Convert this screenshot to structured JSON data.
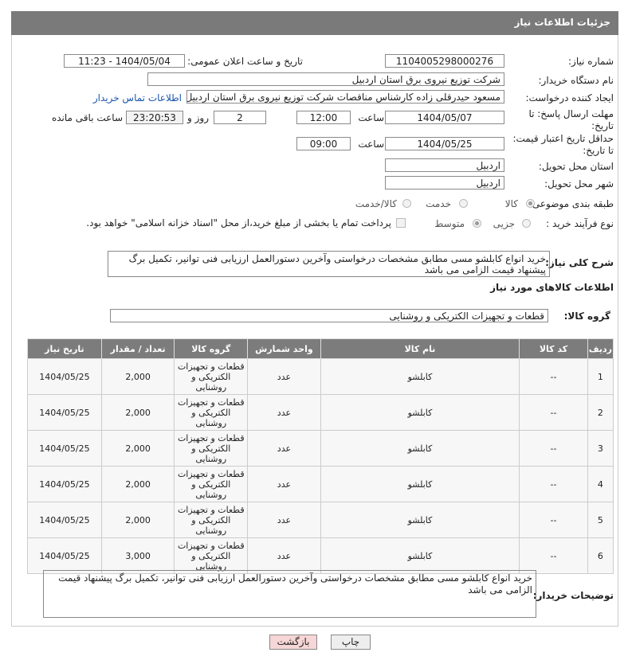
{
  "header": {
    "title": "جزئیات اطلاعات نیاز"
  },
  "fields": {
    "need_number": {
      "label": "شماره نیاز:",
      "value": "1104005298000276"
    },
    "announce_datetime": {
      "label": "تاریخ و ساعت اعلان عمومی:",
      "value": "1404/05/04 - 11:23"
    },
    "buyer_org": {
      "label": "نام دستگاه خریدار:",
      "value": "شرکت توزیع نیروی برق استان اردبیل"
    },
    "requester": {
      "label": "ایجاد کننده درخواست:",
      "value": "مسعود حیدرقلی زاده کارشناس مناقصات شرکت توزیع نیروی برق استان اردبیل",
      "contact_link": "اطلاعات تماس خریدار"
    },
    "response_deadline": {
      "label": "مهلت ارسال پاسخ: تا تاریخ:",
      "date": "1404/05/07",
      "time_label": "ساعت",
      "time": "12:00",
      "days": "2",
      "days_label": "روز و",
      "remaining": "23:20:53",
      "remaining_label": "ساعت باقی مانده"
    },
    "price_validity": {
      "label": "حداقل تاریخ اعتبار قیمت: تا تاریخ:",
      "date": "1404/05/25",
      "time_label": "ساعت",
      "time": "09:00"
    },
    "delivery_province": {
      "label": "استان محل تحویل:",
      "value": "اردبیل"
    },
    "delivery_city": {
      "label": "شهر محل تحویل:",
      "value": "اردبیل"
    },
    "category": {
      "label": "طبقه بندی موضوعی:",
      "options": [
        "کالا",
        "خدمت",
        "کالا/خدمت"
      ]
    },
    "process_type": {
      "label": "نوع فرآیند خرید :",
      "options": [
        "جزیی",
        "متوسط"
      ],
      "treasury_note": "پرداخت تمام یا بخشی از مبلغ خرید،از محل \"اسناد خزانه اسلامی\" خواهد بود."
    },
    "description": {
      "label": "شرح کلی نیاز:",
      "value": "خرید انواع کابلشو مسی مطابق مشخصات درخواستی وآخرین دستورالعمل ارزیابی فنی توانیر، تکمیل برگ پیشنهاد قیمت الزامی می باشد"
    }
  },
  "items": {
    "title": "اطلاعات کالاهای مورد نیاز",
    "group_label": "گروه کالا:",
    "group_value": "قطعات و تجهیزات الکتریکی و روشنایی",
    "table": {
      "columns": [
        "ردیف",
        "کد کالا",
        "نام کالا",
        "واحد شمارش",
        "گروه کالا",
        "تعداد / مقدار",
        "تاریخ نیاز"
      ],
      "rows": [
        [
          "1",
          "--",
          "کابلشو",
          "عدد",
          "قطعات و تجهیزات الکتریکی و روشنایی",
          "2,000",
          "1404/05/25"
        ],
        [
          "2",
          "--",
          "کابلشو",
          "عدد",
          "قطعات و تجهیزات الکتریکی و روشنایی",
          "2,000",
          "1404/05/25"
        ],
        [
          "3",
          "--",
          "کابلشو",
          "عدد",
          "قطعات و تجهیزات الکتریکی و روشنایی",
          "2,000",
          "1404/05/25"
        ],
        [
          "4",
          "--",
          "کابلشو",
          "عدد",
          "قطعات و تجهیزات الکتریکی و روشنایی",
          "2,000",
          "1404/05/25"
        ],
        [
          "5",
          "--",
          "کابلشو",
          "عدد",
          "قطعات و تجهیزات الکتریکی و روشنایی",
          "2,000",
          "1404/05/25"
        ],
        [
          "6",
          "--",
          "کابلشو",
          "عدد",
          "قطعات و تجهیزات الکتریکی و روشنایی",
          "3,000",
          "1404/05/25"
        ]
      ]
    }
  },
  "buyer_notes": {
    "label": "توضیحات خریدار:",
    "value": "خرید انواع کابلشو مسی مطابق مشخصات درخواستی وآخرین دستورالعمل ارزیابی فنی توانیر، تکمیل برگ پیشنهاد قیمت الزامی می باشد"
  },
  "buttons": {
    "print": "چاپ",
    "back": "بازگشت"
  }
}
